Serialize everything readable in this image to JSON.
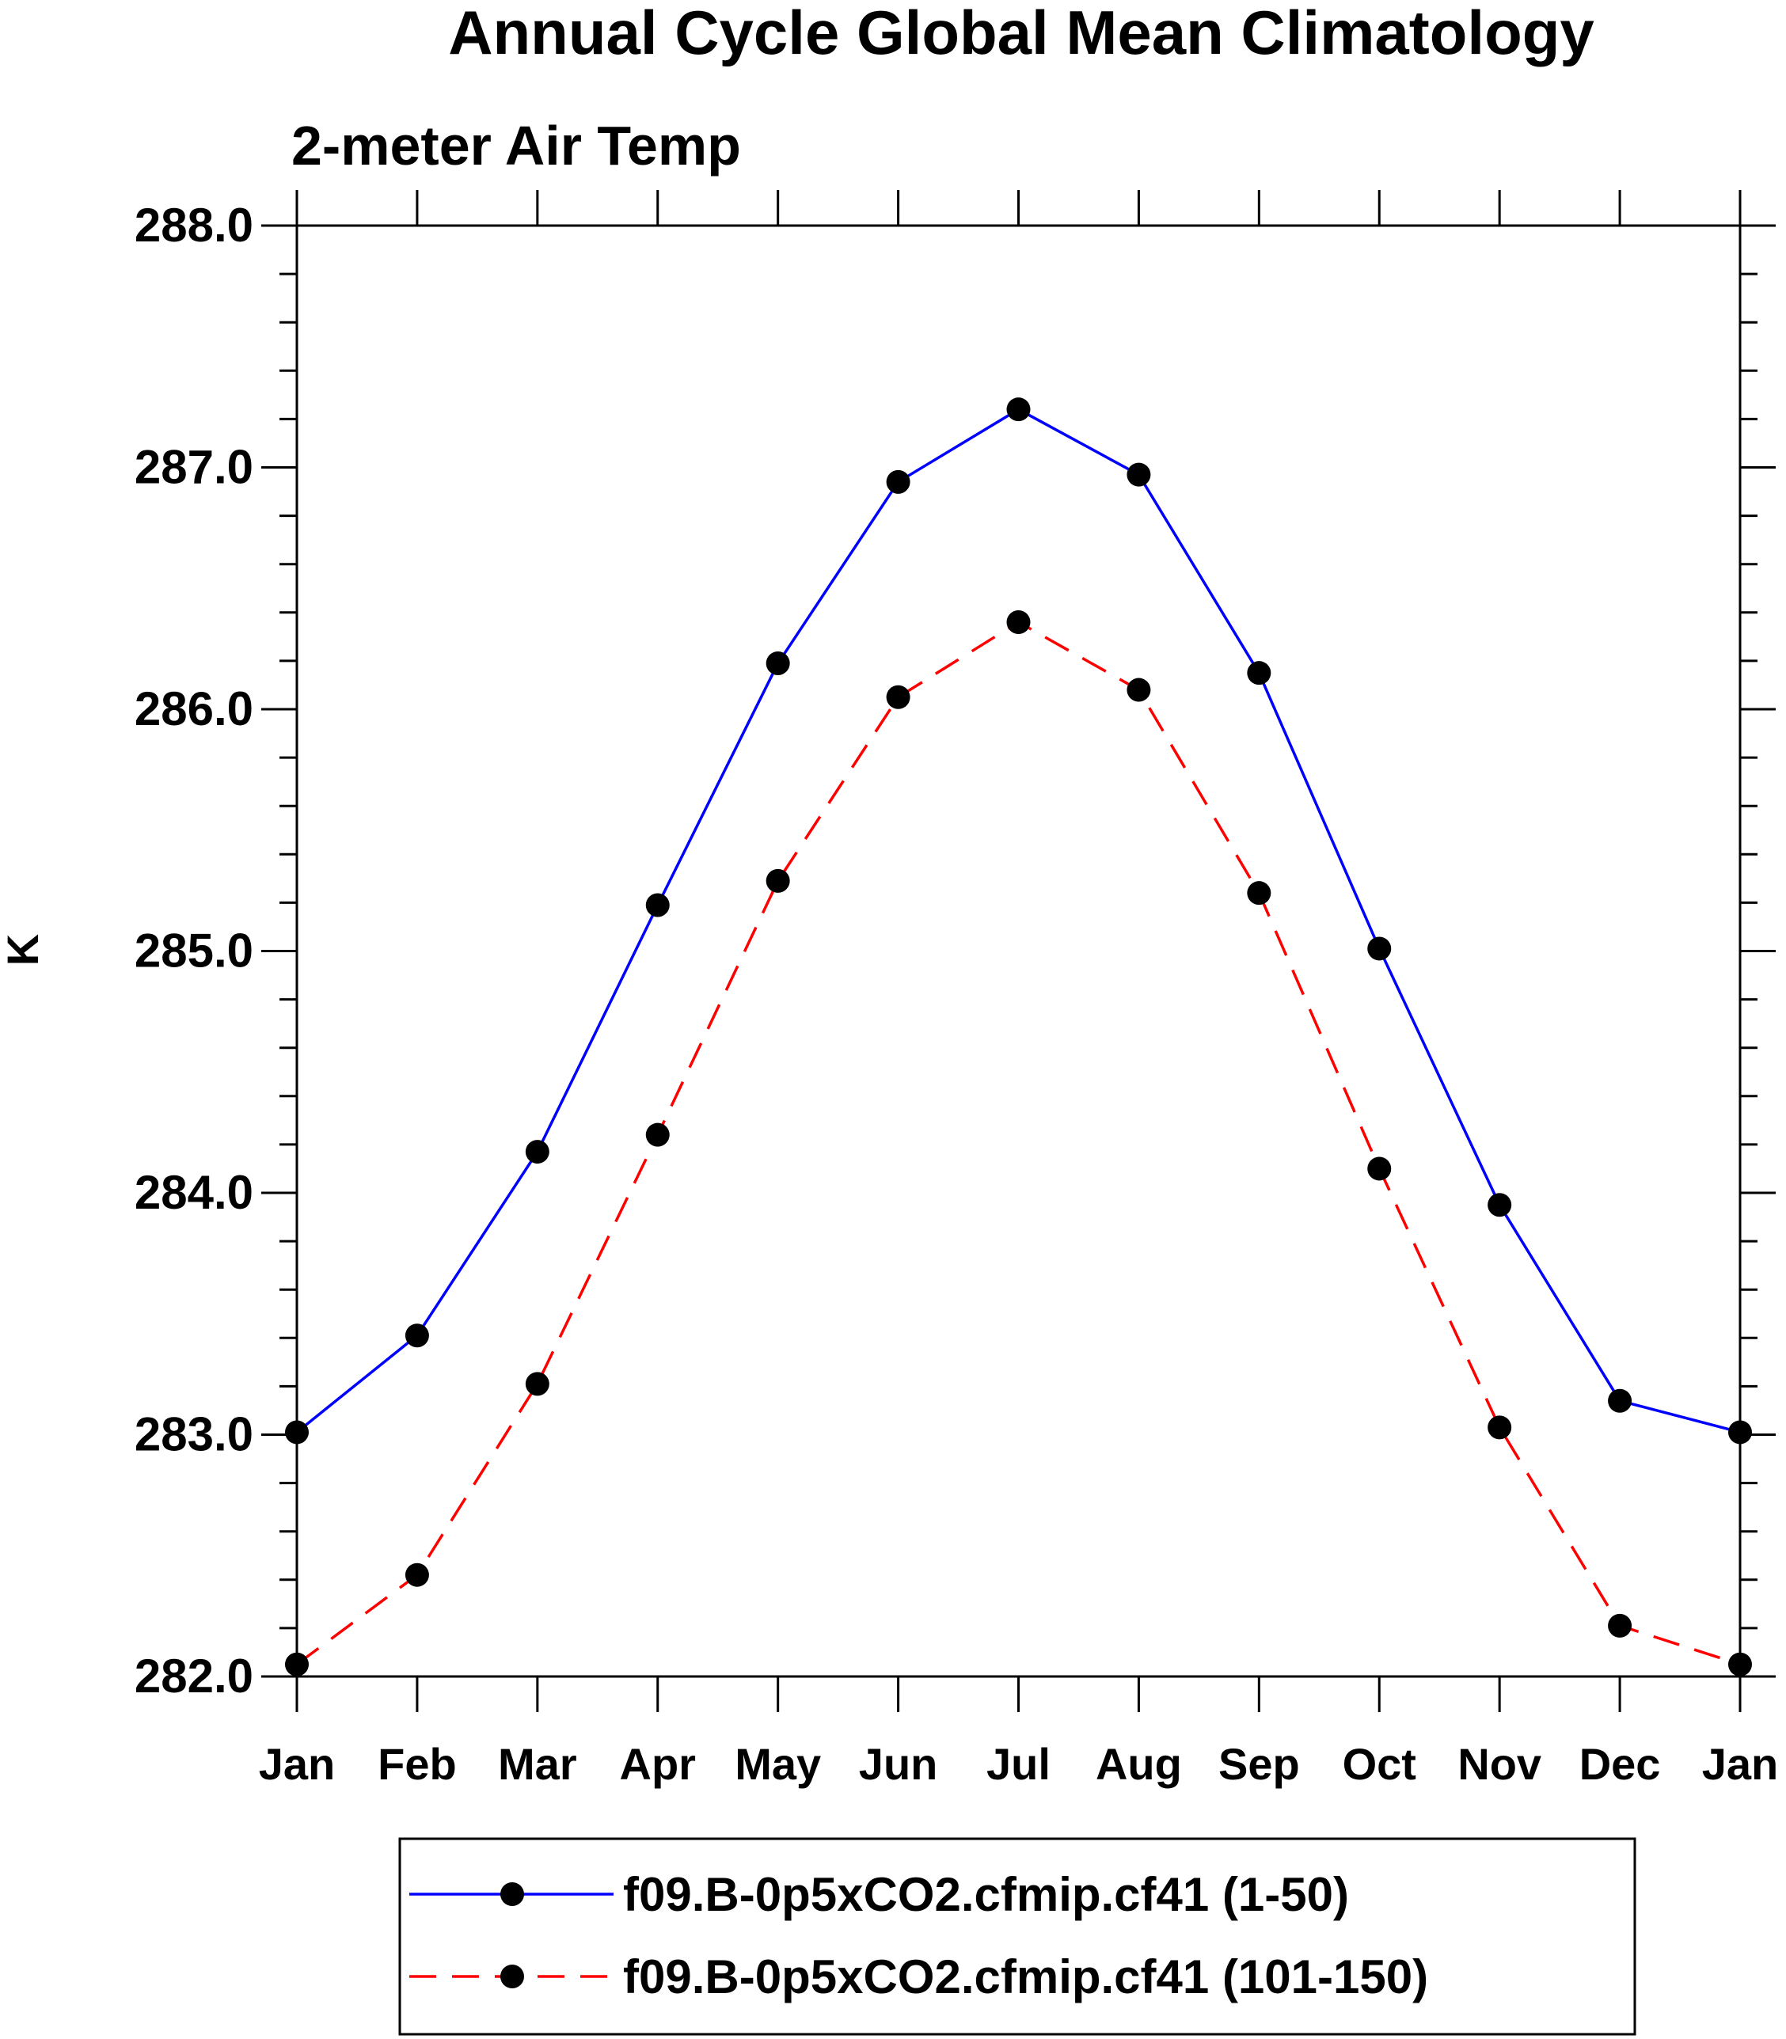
{
  "chart_data": {
    "type": "line",
    "title": "Annual Cycle Global Mean Climatology",
    "subtitle": "2-meter Air Temp",
    "xlabel": "",
    "ylabel": "K",
    "categories": [
      "Jan",
      "Feb",
      "Mar",
      "Apr",
      "May",
      "Jun",
      "Jul",
      "Aug",
      "Sep",
      "Oct",
      "Nov",
      "Dec",
      "Jan"
    ],
    "ylim": [
      282.0,
      288.0
    ],
    "yticks": [
      "282.0",
      "283.0",
      "284.0",
      "285.0",
      "286.0",
      "287.0",
      "288.0"
    ],
    "grid": false,
    "legend_position": "bottom",
    "series": [
      {
        "name": "f09.B-0p5xCO2.cfmip.cf41 (1-50)",
        "color": "#0000ff",
        "dash": "solid",
        "values": [
          283.01,
          283.41,
          284.17,
          285.19,
          286.19,
          286.94,
          287.24,
          286.97,
          286.15,
          285.01,
          283.95,
          283.14,
          283.01
        ]
      },
      {
        "name": "f09.B-0p5xCO2.cfmip.cf41 (101-150)",
        "color": "#ff0000",
        "dash": "dashed",
        "values": [
          282.05,
          282.42,
          283.21,
          284.24,
          285.29,
          286.05,
          286.36,
          286.08,
          285.24,
          284.1,
          283.03,
          282.21,
          282.05
        ]
      }
    ]
  }
}
